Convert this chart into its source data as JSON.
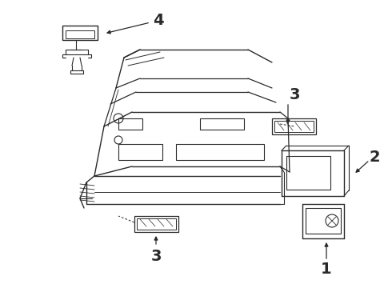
{
  "bg_color": "#ffffff",
  "line_color": "#2a2a2a",
  "fig_width": 4.9,
  "fig_height": 3.6,
  "dpi": 100,
  "label_fontsize": 12,
  "label_fontweight": "bold"
}
